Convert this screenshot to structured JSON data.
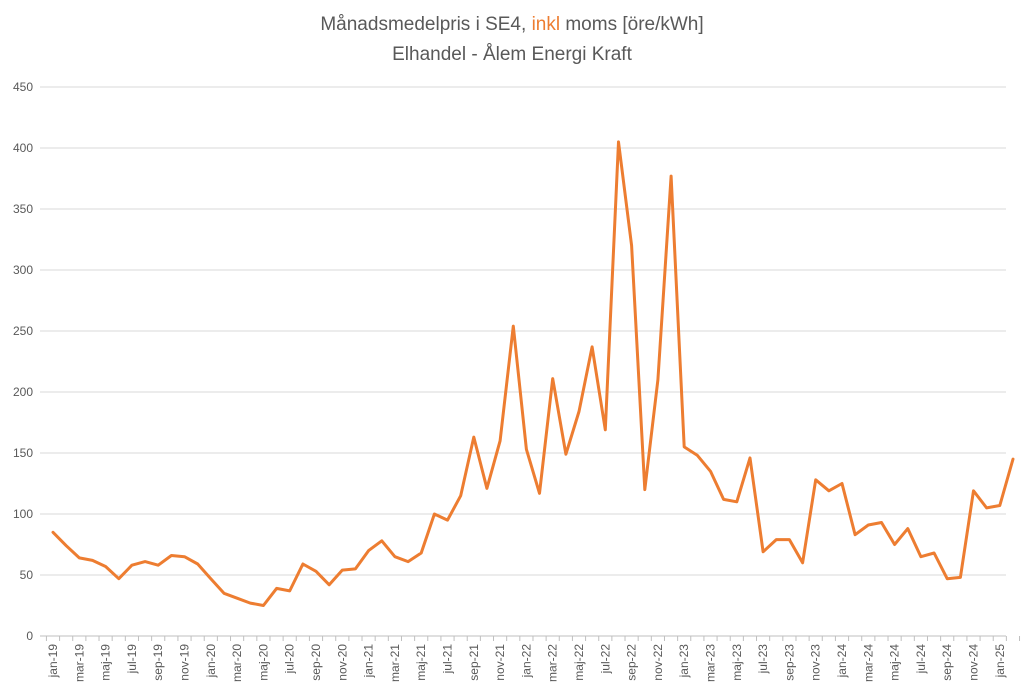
{
  "chart_data": {
    "type": "line",
    "title": {
      "before": "Månadsmedelpris i SE4, ",
      "highlight": "inkl",
      "after": " moms [öre/kWh]",
      "subtitle": "Elhandel - Ålem Energi Kraft"
    },
    "line_color": "#ED7D31",
    "grid": true,
    "ylim": [
      0,
      450
    ],
    "yticks": [
      0,
      50,
      100,
      150,
      200,
      250,
      300,
      350,
      400,
      450
    ],
    "xtick_labels": [
      "jan-19",
      "mar-19",
      "maj-19",
      "jul-19",
      "sep-19",
      "nov-19",
      "jan-20",
      "mar-20",
      "maj-20",
      "jul-20",
      "sep-20",
      "nov-20",
      "jan-21",
      "mar-21",
      "maj-21",
      "jul-21",
      "sep-21",
      "nov-21",
      "jan-22",
      "mar-22",
      "maj-22",
      "jul-22",
      "sep-22",
      "nov-22",
      "jan-23",
      "mar-23",
      "maj-23",
      "jul-23",
      "sep-23",
      "nov-23",
      "jan-24",
      "mar-24",
      "maj-24",
      "jul-24",
      "sep-24",
      "nov-24",
      "jan-25"
    ],
    "series": [
      {
        "values": [
          85,
          74,
          64,
          62,
          57,
          47,
          58,
          61,
          58,
          66,
          65,
          59,
          47,
          35,
          31,
          27,
          25,
          39,
          37,
          59,
          53,
          42,
          54,
          55,
          70,
          78,
          65,
          61,
          68,
          100,
          95,
          115,
          163,
          121,
          160,
          254,
          153,
          117,
          211,
          149,
          184,
          237,
          169,
          405,
          320,
          120,
          210,
          377,
          155,
          148,
          135,
          112,
          110,
          146,
          69,
          79,
          79,
          60,
          128,
          119,
          125,
          83,
          91,
          93,
          75,
          88,
          65,
          68,
          47,
          48,
          119,
          105,
          107,
          145
        ]
      }
    ]
  }
}
